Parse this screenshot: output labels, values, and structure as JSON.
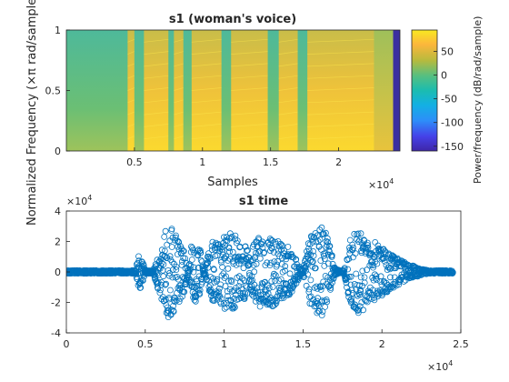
{
  "chart_data": [
    {
      "type": "heatmap",
      "title": "s1 (woman's voice)",
      "xlabel": "Samples",
      "ylabel": "Normalized Frequency  (×π rad/sample)",
      "x_exponent": "×10",
      "x_exponent_power": "4",
      "xlim": [
        0,
        24500
      ],
      "ylim": [
        0,
        1
      ],
      "xticks": [
        5000,
        10000,
        15000,
        20000
      ],
      "xtick_labels": [
        "0.5",
        "1",
        "1.5",
        "2"
      ],
      "yticks": [
        0,
        0.5,
        1
      ],
      "ytick_labels": [
        "0",
        "0.5",
        "1"
      ],
      "colorbar": {
        "label": "Power/frequency (dB/rad/sample)",
        "range": [
          -160,
          95
        ],
        "ticks": [
          50,
          0,
          -50,
          -100,
          -150
        ],
        "tick_labels": [
          "50",
          "0",
          "-50",
          "-100",
          "-150"
        ],
        "colormap": "parula"
      },
      "segments": [
        {
          "x0": 0,
          "x1": 4500,
          "level": "low"
        },
        {
          "x0": 4500,
          "x1": 5000,
          "level": "high"
        },
        {
          "x0": 5000,
          "x1": 5700,
          "level": "low"
        },
        {
          "x0": 5700,
          "x1": 7500,
          "level": "high"
        },
        {
          "x0": 7500,
          "x1": 7900,
          "level": "low"
        },
        {
          "x0": 7900,
          "x1": 8600,
          "level": "high"
        },
        {
          "x0": 8600,
          "x1": 9200,
          "level": "low"
        },
        {
          "x0": 9200,
          "x1": 11400,
          "level": "high"
        },
        {
          "x0": 11400,
          "x1": 12100,
          "level": "low"
        },
        {
          "x0": 12100,
          "x1": 14800,
          "level": "high"
        },
        {
          "x0": 14800,
          "x1": 15600,
          "level": "low"
        },
        {
          "x0": 15600,
          "x1": 17000,
          "level": "high"
        },
        {
          "x0": 17000,
          "x1": 17700,
          "level": "low"
        },
        {
          "x0": 17700,
          "x1": 22600,
          "level": "high"
        },
        {
          "x0": 22600,
          "x1": 24000,
          "level": "mid"
        },
        {
          "x0": 24000,
          "x1": 24500,
          "level": "floor"
        }
      ]
    },
    {
      "type": "scatter",
      "title": "s1 time",
      "xlabel": "",
      "ylabel": "",
      "xlim": [
        0,
        25000
      ],
      "ylim": [
        -40000,
        40000
      ],
      "xticks": [
        0,
        5000,
        10000,
        15000,
        20000,
        25000
      ],
      "xtick_labels": [
        "0",
        "0.5",
        "1",
        "1.5",
        "2",
        "2.5"
      ],
      "yticks": [
        40000,
        20000,
        0,
        -20000,
        -40000
      ],
      "ytick_labels": [
        "4",
        "2",
        "0",
        "-2",
        "-4"
      ],
      "x_exponent": "×10",
      "x_exponent_power": "4",
      "y_exponent": "×10",
      "y_exponent_power": "4",
      "marker": "circle",
      "color": "#0072BD",
      "envelope": {
        "x": [
          0,
          4400,
          4600,
          4800,
          5000,
          5500,
          6000,
          6300,
          6600,
          6800,
          7200,
          7500,
          7700,
          7900,
          8200,
          8500,
          8700,
          9000,
          9300,
          9600,
          10000,
          10500,
          11000,
          11400,
          11600,
          12000,
          12300,
          12600,
          13000,
          13500,
          14000,
          14500,
          14800,
          15000,
          15400,
          15800,
          16200,
          16600,
          17000,
          17300,
          17600,
          18000,
          18500,
          19000,
          19500,
          20000,
          20500,
          21000,
          21500,
          22000,
          22500,
          23000,
          23500,
          24000,
          24500
        ],
        "upper": [
          1000,
          1000,
          15000,
          8000,
          1000,
          1000,
          15000,
          28000,
          32000,
          27000,
          19000,
          13000,
          1000,
          17000,
          20000,
          14000,
          1000,
          12000,
          22000,
          19000,
          24000,
          26000,
          22000,
          18000,
          10000,
          22000,
          25000,
          20000,
          23000,
          20000,
          18000,
          10000,
          3000,
          1000,
          23000,
          26000,
          30000,
          23000,
          3000,
          1000,
          1000,
          22000,
          28000,
          23000,
          20000,
          16000,
          12000,
          9000,
          6000,
          4000,
          2000,
          1000,
          1000,
          1000,
          1000
        ],
        "lower": [
          -1000,
          -1000,
          -13000,
          -8000,
          -1000,
          -1000,
          -18000,
          -27000,
          -33000,
          -27000,
          -20000,
          -14000,
          -1000,
          -16000,
          -20000,
          -14000,
          -1000,
          -12000,
          -21000,
          -19000,
          -24000,
          -25000,
          -21000,
          -17000,
          -10000,
          -22000,
          -24000,
          -21000,
          -23000,
          -20000,
          -17000,
          -10000,
          -3000,
          -1000,
          -22000,
          -28000,
          -30000,
          -22000,
          -3000,
          -1000,
          -1000,
          -23000,
          -27000,
          -24000,
          -20000,
          -16000,
          -12000,
          -9000,
          -6000,
          -4000,
          -2000,
          -1000,
          -1000,
          -1000,
          -1000
        ]
      }
    }
  ]
}
